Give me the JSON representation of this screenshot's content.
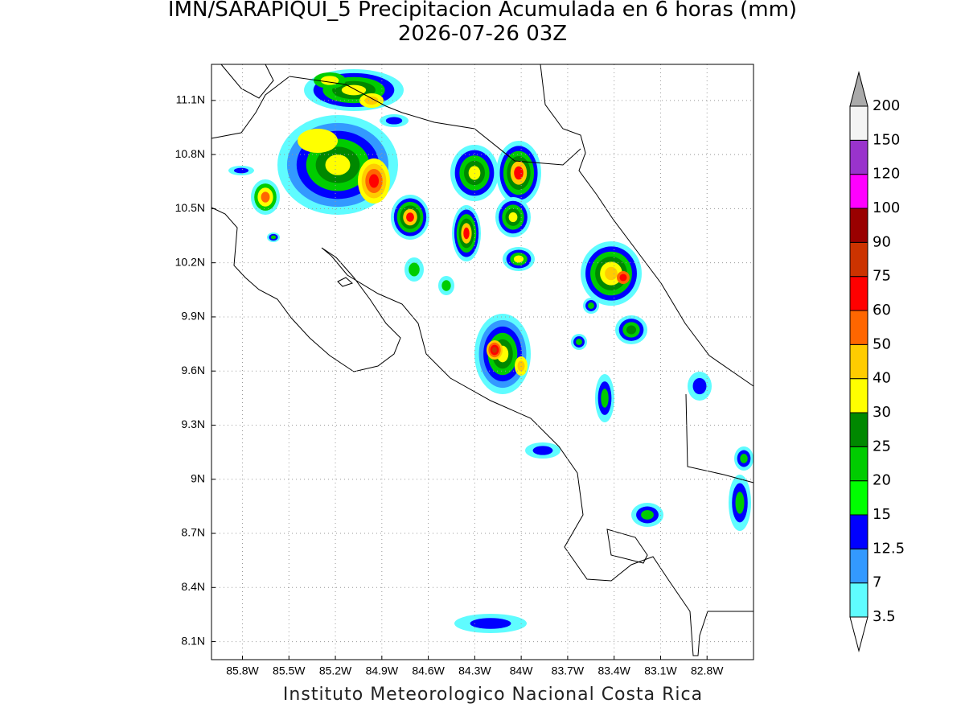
{
  "title": [
    "IMN/SARAPIQUI_5 Precipitacion Acumulada en 6 horas (mm)",
    "2026-07-26 03Z"
  ],
  "map": {
    "xlim": [
      -86.0,
      -82.5
    ],
    "ylim": [
      8.0,
      11.3
    ],
    "xticks": [
      {
        "value": -85.8,
        "label": "85.8W"
      },
      {
        "value": -85.5,
        "label": "85.5W"
      },
      {
        "value": -85.2,
        "label": "85.2W"
      },
      {
        "value": -84.9,
        "label": "84.9W"
      },
      {
        "value": -84.6,
        "label": "84.6W"
      },
      {
        "value": -84.3,
        "label": "84.3W"
      },
      {
        "value": -84.0,
        "label": "84W"
      },
      {
        "value": -83.7,
        "label": "83.7W"
      },
      {
        "value": -83.4,
        "label": "83.4W"
      },
      {
        "value": -83.1,
        "label": "83.1W"
      },
      {
        "value": -82.8,
        "label": "82.8W"
      }
    ],
    "yticks": [
      {
        "value": 8.1,
        "label": "8.1N"
      },
      {
        "value": 8.4,
        "label": "8.4N"
      },
      {
        "value": 8.7,
        "label": "8.7N"
      },
      {
        "value": 9.0,
        "label": "9N"
      },
      {
        "value": 9.3,
        "label": "9.3N"
      },
      {
        "value": 9.6,
        "label": "9.6N"
      },
      {
        "value": 9.9,
        "label": "9.9N"
      },
      {
        "value": 10.2,
        "label": "10.2N"
      },
      {
        "value": 10.5,
        "label": "10.5N"
      },
      {
        "value": 10.8,
        "label": "10.8N"
      },
      {
        "value": 11.1,
        "label": "11.1N"
      }
    ],
    "grid": true
  },
  "colorbar": {
    "levels": [
      3.5,
      7,
      12.5,
      15,
      20,
      25,
      30,
      40,
      50,
      60,
      75,
      90,
      100,
      120,
      150,
      200
    ],
    "colors": [
      "#5ffcff",
      "#3399ff",
      "#0000ff",
      "#00ff00",
      "#00cc00",
      "#008800",
      "#ffff00",
      "#ffcc00",
      "#ff6600",
      "#ff0000",
      "#cc3300",
      "#990000",
      "#ff00ff",
      "#9933cc",
      "#f4f4f4"
    ],
    "under_color": "#ffffff",
    "over_color": "#aaaaaa"
  },
  "footer": "Instituto Meteorologico Nacional Costa Rica"
}
